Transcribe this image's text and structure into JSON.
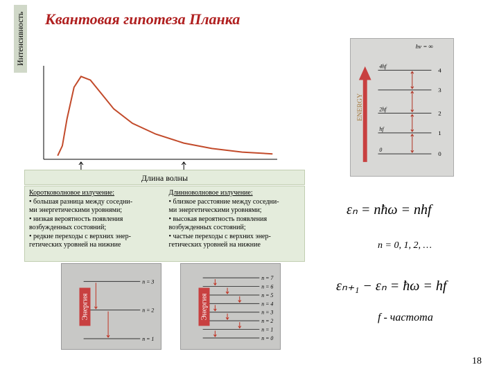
{
  "title": {
    "text": "Квантовая гипотеза Планка",
    "color": "#b02020"
  },
  "chart": {
    "type": "line",
    "ylabel": "Интенсивность",
    "xlabel": "Длина волны",
    "background": "#ffffff",
    "axis_color": "#000000",
    "curve_color": "#c24a2a",
    "curve_width": 2,
    "xlim": [
      0,
      100
    ],
    "ylim": [
      0,
      100
    ],
    "points": [
      [
        6,
        4
      ],
      [
        8,
        15
      ],
      [
        10,
        45
      ],
      [
        13,
        80
      ],
      [
        16,
        92
      ],
      [
        20,
        88
      ],
      [
        25,
        72
      ],
      [
        30,
        56
      ],
      [
        38,
        40
      ],
      [
        48,
        28
      ],
      [
        60,
        18
      ],
      [
        72,
        12
      ],
      [
        85,
        8
      ],
      [
        98,
        6
      ]
    ],
    "arrows_x": [
      16,
      60
    ],
    "textbox_bg": "#e4ecdc"
  },
  "short": {
    "header": "Коротковолновое излучение:",
    "lines": [
      "• большая разница между соседни-",
      "  ми энергетическими уровнями;",
      "• низкая вероятность появления",
      "  возбужденных состояний;",
      "• редкие переходы с верхних энер-",
      "  гетических уровней на нижние"
    ]
  },
  "long": {
    "header": "Длинноволновое излучение:",
    "lines": [
      "• близкое расстояние между соседни-",
      "  ми энергетическими уровнями;",
      "• высокая вероятность появления",
      "  возбужденных состояний;",
      "• частые переходы с верхних энер-",
      "  гетических уровней на нижние"
    ]
  },
  "energy_left": {
    "label": "Энергия",
    "label_bg": "#c84040",
    "levels": [
      0.15,
      0.55,
      0.95
    ],
    "level_labels": [
      "n = 3",
      "n = 2",
      "n = 1"
    ],
    "arrow_color": "#c03020"
  },
  "energy_right": {
    "label": "Энергия",
    "label_bg": "#c84040",
    "levels": [
      0.1,
      0.22,
      0.34,
      0.46,
      0.58,
      0.7,
      0.82,
      0.94
    ],
    "level_labels": [
      "n = 7",
      "n = 6",
      "n = 5",
      "n = 4",
      "n = 3",
      "n = 2",
      "n = 1",
      "n = 0"
    ],
    "arrow_color": "#c03020"
  },
  "side_energy": {
    "bg": "#d8d8d6",
    "arrow_color": "#c84040",
    "level_labels_right": [
      "4",
      "3",
      "2",
      "1",
      "0"
    ],
    "level_labels_left": [
      "4hf",
      "",
      "2hf",
      "hf",
      "0"
    ],
    "top_label": "hv = ∞",
    "side_label": "ENERGY",
    "level_y": [
      0.18,
      0.35,
      0.55,
      0.72,
      0.9
    ]
  },
  "equations": {
    "e1": "εₙ = nħω = nhf",
    "n_values": "n = 0, 1, 2, …",
    "e2": "εₙ₊₁ − εₙ = ħω = hf",
    "freq": "f - частота"
  },
  "page": "18"
}
